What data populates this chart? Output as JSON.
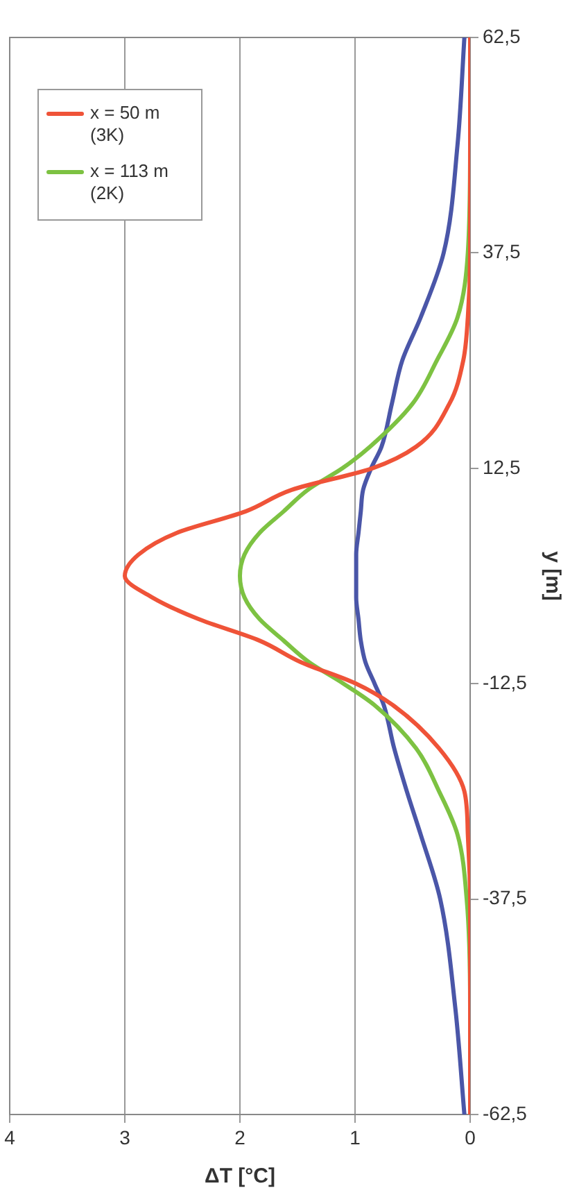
{
  "chart_data": {
    "type": "line",
    "xlabel": "ΔT [°C]",
    "ylabel": "y [m]",
    "xlim": [
      4,
      0
    ],
    "xticks": [
      4,
      3,
      2,
      1,
      0
    ],
    "ylim": [
      -62.5,
      62.5
    ],
    "yticks": [
      {
        "value": -62.5,
        "label": "-62,5"
      },
      {
        "value": -37.5,
        "label": "-37,5"
      },
      {
        "value": -12.5,
        "label": "-12,5"
      },
      {
        "value": 12.5,
        "label": "12,5"
      },
      {
        "value": 37.5,
        "label": "37,5"
      },
      {
        "value": 62.5,
        "label": "62,5"
      }
    ],
    "grid": "x",
    "legend": "top left",
    "marker": "none",
    "line_style": "solid",
    "series": [
      {
        "name": "x = 50 m (3K)",
        "color": "#ef5338",
        "x": [
          0,
          0,
          0,
          0.02,
          0.05,
          0.27,
          0.67,
          0.99,
          1.47,
          1.83,
          2.36,
          2.76,
          3.0,
          2.88,
          2.55,
          1.95,
          1.55,
          0.85,
          0.47,
          0.18,
          0.06,
          0.02,
          0,
          0,
          0
        ],
        "values": [
          -62.5,
          -50,
          -37.5,
          -30,
          -25,
          -20,
          -15,
          -12.5,
          -10,
          -7.5,
          -5,
          -2.5,
          0,
          2.5,
          5,
          7.5,
          10,
          12.5,
          15,
          20,
          25,
          30,
          37.5,
          50,
          62.5
        ]
      },
      {
        "name": "x = 113 m (2K)",
        "color": "#7dc242",
        "x": [
          0,
          0,
          0.03,
          0.11,
          0.27,
          0.47,
          0.83,
          1.1,
          1.4,
          1.62,
          1.83,
          1.96,
          2.0,
          1.96,
          1.83,
          1.62,
          1.41,
          1.11,
          0.87,
          0.5,
          0.29,
          0.11,
          0.02,
          0,
          0
        ],
        "values": [
          -62.5,
          -50,
          -37.5,
          -30,
          -25,
          -20,
          -15,
          -12.5,
          -10,
          -7.5,
          -5,
          -2.5,
          0,
          2.5,
          5,
          7.5,
          10,
          12.5,
          15,
          20,
          25,
          30,
          37.5,
          50,
          62.5
        ]
      },
      {
        "color": "#4a56a8",
        "x": [
          0.05,
          0.13,
          0.26,
          0.43,
          0.55,
          0.66,
          0.75,
          0.83,
          0.91,
          0.95,
          0.97,
          0.99,
          0.99,
          0.99,
          0.97,
          0.95,
          0.93,
          0.86,
          0.77,
          0.68,
          0.59,
          0.43,
          0.23,
          0.11,
          0.05
        ],
        "values": [
          -62.5,
          -50,
          -37.5,
          -30,
          -25,
          -20,
          -15,
          -12.5,
          -10,
          -7.5,
          -5,
          -2.5,
          0,
          2.5,
          5,
          7.5,
          10,
          12.5,
          15,
          20,
          25,
          30,
          37.5,
          50,
          62.5
        ]
      }
    ]
  }
}
